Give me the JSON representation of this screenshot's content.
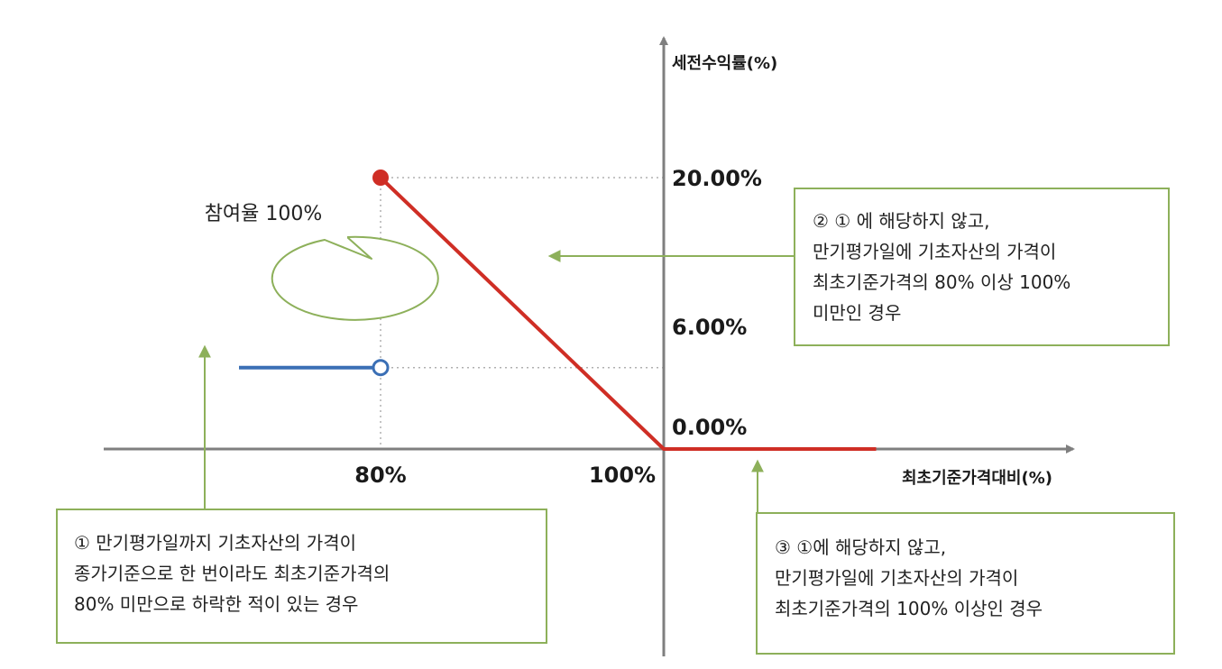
{
  "chart_data": {
    "type": "line",
    "title": "",
    "xlabel": "최초기준가격대비(%)",
    "ylabel": "세전수익률(%)",
    "x_ticks": [
      "80%",
      "100%"
    ],
    "y_ticks": [
      "20.00%",
      "6.00%",
      "0.00%"
    ],
    "series": [
      {
        "color": "#3b6fb5",
        "points": [
          [
            70,
            6
          ],
          [
            80,
            6
          ]
        ],
        "endpoint": "open-circle-at-80"
      },
      {
        "color": "#cf2e25",
        "points": [
          [
            80,
            20
          ],
          [
            100,
            0
          ],
          [
            115,
            0
          ]
        ],
        "endpoint": "filled-circle-at-80"
      }
    ],
    "grid": false
  },
  "bubble": {
    "text": "참여율 100%"
  },
  "annotations": {
    "box1": {
      "lines": [
        "① 만기평가일까지 기초자산의 가격이",
        "종가기준으로 한 번이라도 최초기준가격의",
        "80% 미만으로 하락한 적이 있는 경우"
      ]
    },
    "box2": {
      "lines": [
        "② ① 에 해당하지 않고,",
        "만기평가일에 기초자산의 가격이",
        "최초기준가격의 80% 이상 100%",
        "미만인 경우"
      ]
    },
    "box3": {
      "lines": [
        "③ ①에 해당하지 않고,",
        "만기평가일에 기초자산의 가격이",
        "최초기준가격의 100% 이상인 경우"
      ]
    }
  },
  "colors": {
    "axis": "#7f7f7f",
    "arrow": "#8db05a",
    "blue": "#3b6fb5",
    "red": "#cf2e25"
  }
}
